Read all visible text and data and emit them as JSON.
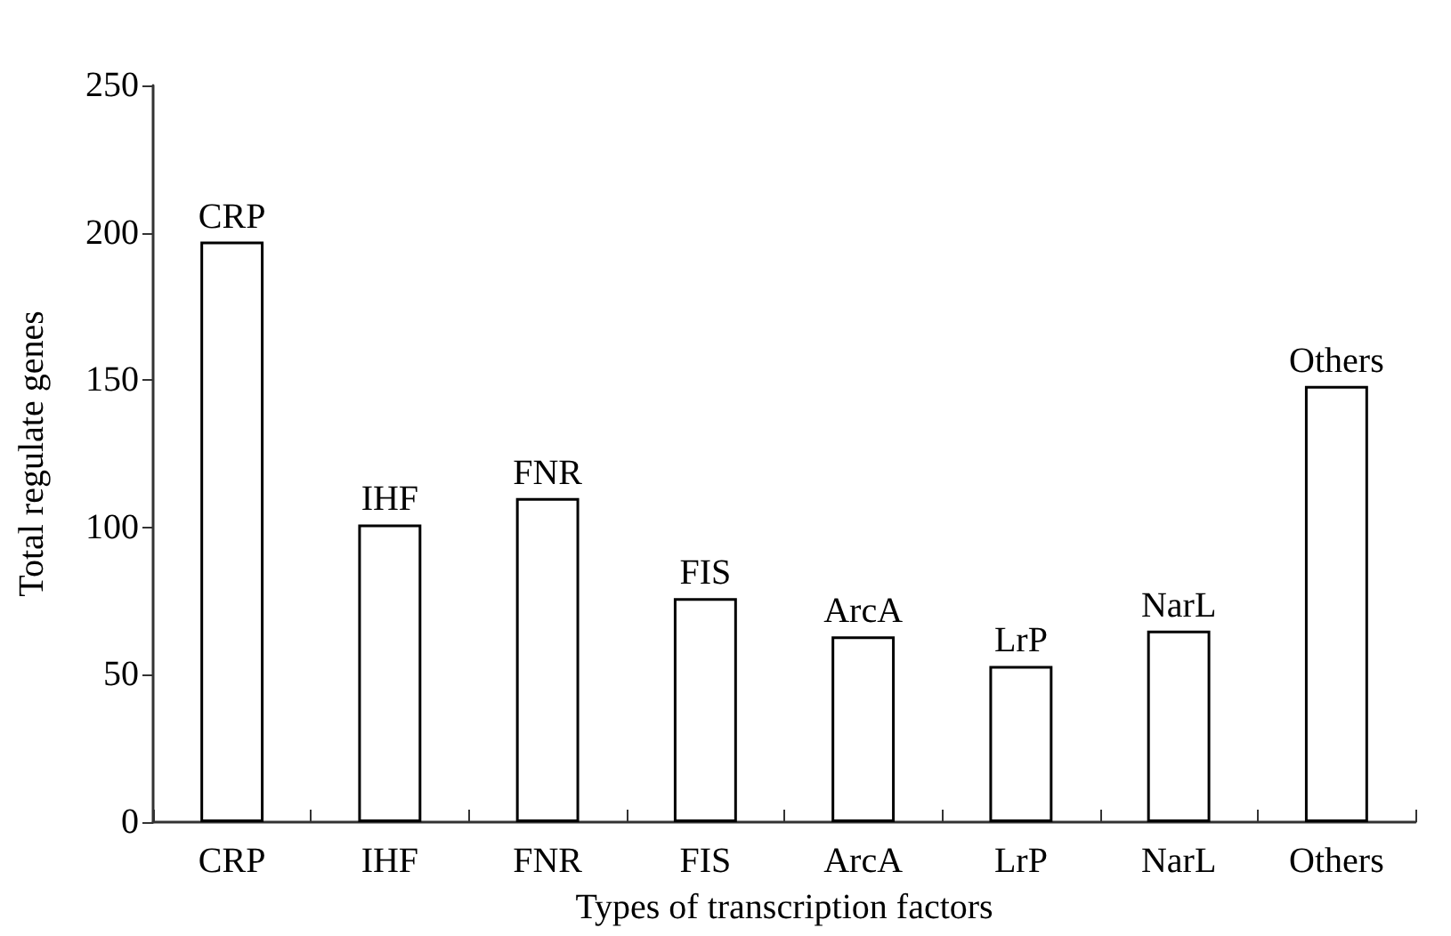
{
  "chart_data": {
    "type": "bar",
    "xlabel": "Types of transcription factors",
    "ylabel": "Total regulate genes",
    "categories": [
      "CRP",
      "IHF",
      "FNR",
      "FIS",
      "ArcA",
      "LrP",
      "NarL",
      "Others"
    ],
    "values": [
      197,
      101,
      110,
      76,
      63,
      53,
      65,
      148
    ],
    "color": "#ffffff",
    "ylim": [
      0,
      250
    ],
    "yticks": [
      0,
      50,
      100,
      150,
      200,
      250
    ],
    "annotations": [
      {
        "text": "CRP",
        "x": "CRP",
        "y": 197
      },
      {
        "text": "IHF",
        "x": "IHF",
        "y": 101
      },
      {
        "text": "FNR",
        "x": "FNR",
        "y": 110
      },
      {
        "text": "FIS",
        "x": "FIS",
        "y": 76
      },
      {
        "text": "ArcA",
        "x": "ArcA",
        "y": 63
      },
      {
        "text": "LrP",
        "x": "LrP",
        "y": 53
      },
      {
        "text": "NarL",
        "x": "NarL",
        "y": 65
      },
      {
        "text": "Others",
        "x": "Others",
        "y": 148
      }
    ],
    "grid": false
  }
}
